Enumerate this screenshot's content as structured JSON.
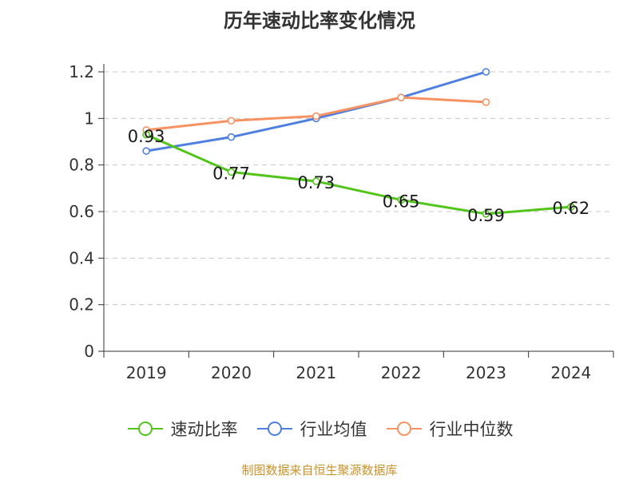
{
  "colors": {
    "series_0": "#52c41a",
    "series_1": "#4f7fdf",
    "series_2": "#f79262",
    "grid": "#c8c8c8",
    "axis": "#333333",
    "source_text": "#c8922a"
  },
  "chart_data": {
    "type": "line",
    "title": "历年速动比率变化情况",
    "categories": [
      "2019",
      "2020",
      "2021",
      "2022",
      "2023",
      "2024"
    ],
    "ylim": [
      0,
      1.2
    ],
    "yticks": [
      0,
      0.2,
      0.4,
      0.6,
      0.8,
      1,
      1.2
    ],
    "ytick_labels": [
      "0",
      "0.2",
      "0.4",
      "0.6",
      "0.8",
      "1",
      "1.2"
    ],
    "grid": true,
    "legend_position": "bottom",
    "series": [
      {
        "name": "速动比率",
        "values": [
          0.93,
          0.77,
          0.73,
          0.65,
          0.59,
          0.62
        ],
        "labels": [
          "0.93",
          "0.77",
          "0.73",
          "0.65",
          "0.59",
          "0.62"
        ]
      },
      {
        "name": "行业均值",
        "values": [
          0.86,
          0.92,
          1.0,
          1.09,
          1.2,
          null
        ]
      },
      {
        "name": "行业中位数",
        "values": [
          0.95,
          0.99,
          1.01,
          1.09,
          1.07,
          null
        ]
      }
    ]
  },
  "source_text": "制图数据来自恒生聚源数据库"
}
